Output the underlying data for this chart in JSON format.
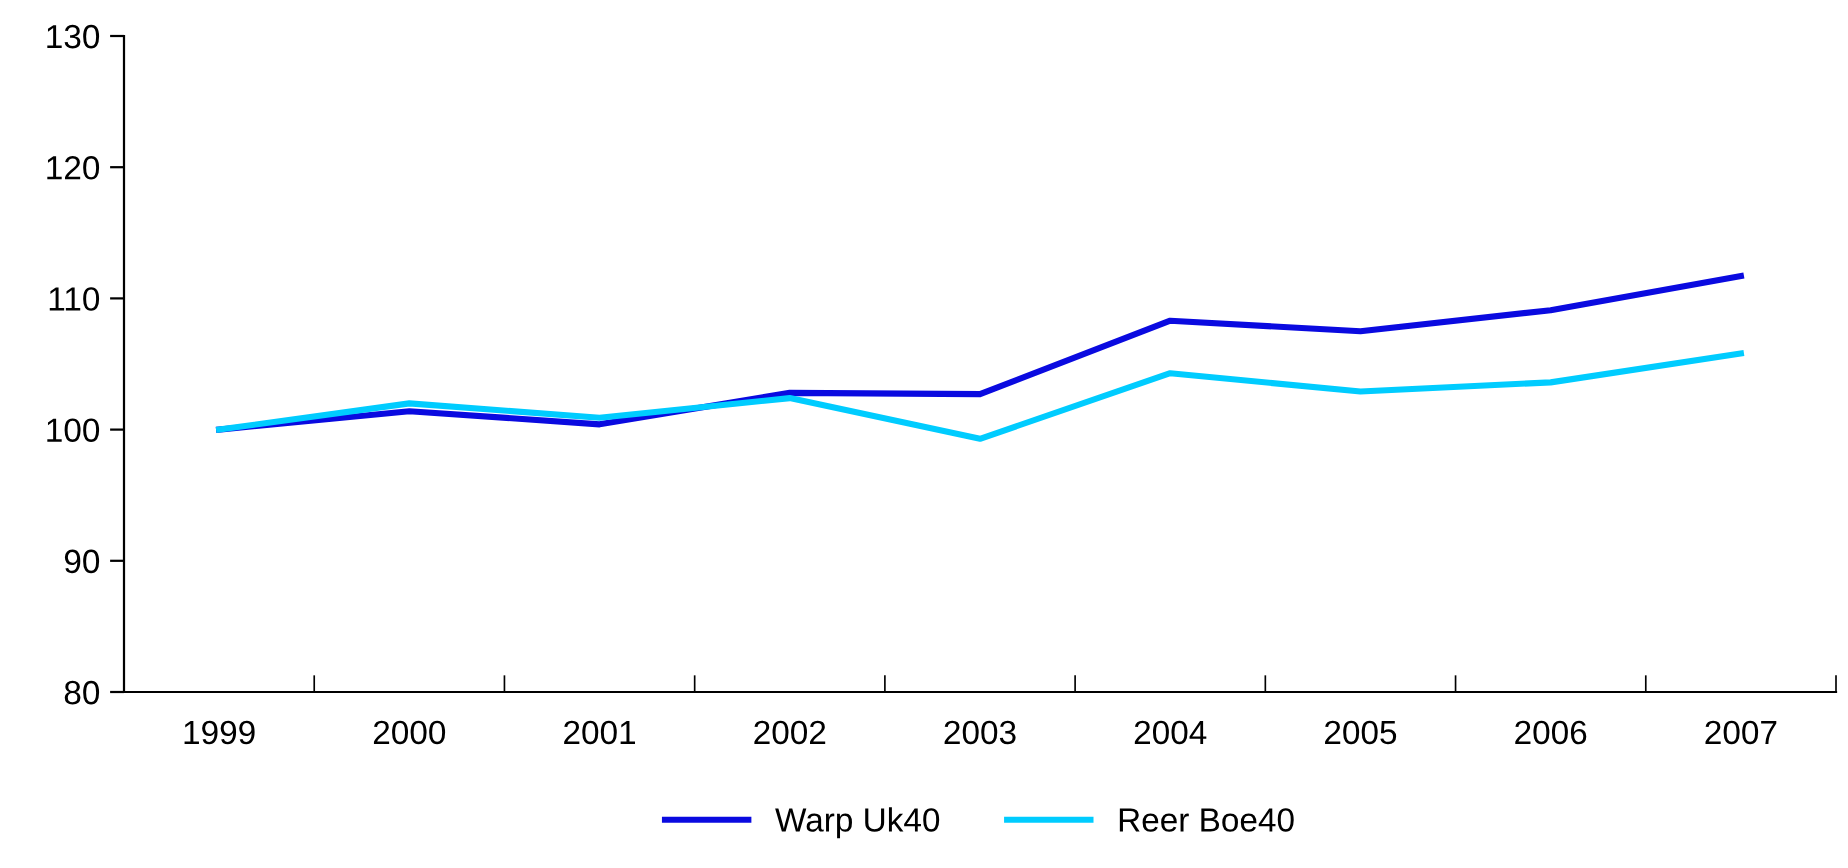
{
  "chart_data": {
    "type": "line",
    "categories": [
      "1999",
      "2000",
      "2001",
      "2002",
      "2003",
      "2004",
      "2005",
      "2006",
      "2007"
    ],
    "series": [
      {
        "name": "Warp Uk40",
        "color": "#0a0ae0",
        "values": [
          100,
          101.4,
          100.4,
          102.8,
          102.7,
          108.3,
          107.5,
          109.1,
          111.7
        ]
      },
      {
        "name": "Reer Boe40",
        "color": "#00ccff",
        "values": [
          100,
          102.0,
          100.9,
          102.4,
          99.3,
          104.3,
          102.9,
          103.6,
          105.8
        ]
      }
    ],
    "ylim": [
      80,
      130
    ],
    "yticks": [
      80,
      90,
      100,
      110,
      120,
      130
    ],
    "grid": false,
    "legend": "bottom",
    "marker": "none",
    "line_style": "solid"
  }
}
